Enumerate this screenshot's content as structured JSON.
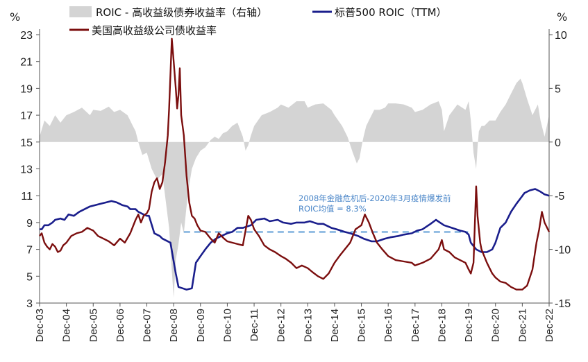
{
  "chart_data": {
    "type": "area",
    "left_axis": {
      "unit": "%",
      "ticks": [
        "3",
        "5",
        "7",
        "9",
        "11",
        "13",
        "15",
        "17",
        "19",
        "21",
        "23"
      ],
      "range": [
        3,
        23
      ]
    },
    "right_axis": {
      "unit": "%",
      "ticks": [
        "-15",
        "-10",
        "-5",
        "0",
        "5",
        "10"
      ],
      "range": [
        -15,
        10
      ]
    },
    "x_ticks": [
      "Dec-03",
      "Dec-04",
      "Dec-05",
      "Dec-06",
      "Dec-07",
      "Dec-08",
      "Dec-09",
      "Dec-10",
      "Dec-11",
      "Dec-12",
      "Dec-13",
      "Dec-14",
      "Dec-15",
      "Dec-16",
      "Dec-17",
      "Dec-18",
      "Dec-19",
      "Dec-20",
      "Dec-21",
      "Dec-22"
    ],
    "legend": [
      {
        "name": "ROIC - 高收益级债券收益率（右轴）",
        "color": "#d4d4d4",
        "kind": "area"
      },
      {
        "name": "标普500 ROIC（TTM）",
        "color": "#1a1e8c",
        "kind": "line"
      },
      {
        "name": "美国高收益级公司债收益率",
        "color": "#7b0e0e",
        "kind": "line"
      }
    ],
    "annotation": {
      "line1": "2008年金融危机后-2020年3月疫情爆发前",
      "line2": "ROIC均值 = 8.3%",
      "value": 8.3,
      "x_start": 2009.3,
      "x_end": 2019.9
    },
    "series": [
      {
        "name": "ROIC - 高收益级债券收益率（右轴）",
        "axis": "right",
        "x": [
          2003.92,
          2004.1,
          2004.3,
          2004.5,
          2004.7,
          2004.92,
          2005.2,
          2005.5,
          2005.8,
          2005.92,
          2006.2,
          2006.5,
          2006.7,
          2006.92,
          2007.2,
          2007.4,
          2007.5,
          2007.6,
          2007.75,
          2007.92,
          2008.1,
          2008.3,
          2008.5,
          2008.6,
          2008.75,
          2008.85,
          2008.92,
          2009.0,
          2009.1,
          2009.2,
          2009.3,
          2009.4,
          2009.5,
          2009.6,
          2009.75,
          2009.92,
          2010.1,
          2010.3,
          2010.45,
          2010.6,
          2010.75,
          2010.92,
          2011.1,
          2011.3,
          2011.5,
          2011.6,
          2011.7,
          2011.8,
          2011.92,
          2012.2,
          2012.5,
          2012.8,
          2012.92,
          2013.2,
          2013.5,
          2013.8,
          2013.92,
          2014.2,
          2014.5,
          2014.8,
          2014.92,
          2015.2,
          2015.4,
          2015.6,
          2015.75,
          2015.85,
          2015.92,
          2016.0,
          2016.1,
          2016.2,
          2016.4,
          2016.6,
          2016.8,
          2016.92,
          2017.2,
          2017.5,
          2017.8,
          2017.92,
          2018.2,
          2018.5,
          2018.8,
          2018.92,
          2019.0,
          2019.2,
          2019.5,
          2019.8,
          2019.92,
          2020.0,
          2020.1,
          2020.2,
          2020.25,
          2020.3,
          2020.4,
          2020.5,
          2020.7,
          2020.92,
          2021.1,
          2021.3,
          2021.5,
          2021.7,
          2021.85,
          2021.92,
          2022.1,
          2022.3,
          2022.5,
          2022.6,
          2022.75,
          2022.92
        ],
        "values": [
          0.5,
          2.0,
          1.5,
          2.5,
          1.8,
          2.5,
          2.8,
          3.2,
          2.5,
          3.0,
          2.9,
          3.3,
          2.8,
          3.0,
          2.5,
          1.5,
          1.0,
          0.0,
          -1.2,
          -1.0,
          -2.5,
          -3.5,
          -3.0,
          -5.0,
          -8.0,
          -12.0,
          -14.5,
          -11.0,
          -9.5,
          -7.5,
          -8.5,
          -6.0,
          -4.0,
          -2.5,
          -1.5,
          -0.8,
          -0.5,
          0.2,
          0.5,
          0.3,
          0.8,
          1.0,
          1.5,
          1.8,
          0.5,
          -0.8,
          -0.3,
          0.6,
          1.5,
          2.5,
          2.8,
          3.2,
          3.5,
          3.2,
          3.8,
          3.8,
          3.2,
          3.5,
          3.6,
          3.0,
          2.5,
          1.5,
          0.5,
          -1.0,
          -2.0,
          -1.5,
          -0.5,
          0.5,
          1.5,
          2.0,
          3.0,
          3.0,
          3.2,
          3.6,
          3.6,
          3.5,
          3.2,
          2.8,
          3.0,
          3.5,
          3.8,
          3.0,
          1.0,
          2.5,
          3.5,
          3.0,
          3.8,
          2.0,
          -1.0,
          -2.5,
          -0.5,
          1.0,
          1.5,
          1.5,
          2.0,
          2.0,
          2.8,
          3.5,
          4.5,
          5.5,
          5.9,
          5.5,
          4.0,
          2.5,
          3.5,
          2.0,
          0.5,
          2.5
        ]
      },
      {
        "name": "标普500 ROIC（TTM）",
        "axis": "left",
        "x": [
          2003.92,
          2004.0,
          2004.1,
          2004.25,
          2004.4,
          2004.5,
          2004.7,
          2004.85,
          2005.0,
          2005.2,
          2005.4,
          2005.6,
          2005.8,
          2006.0,
          2006.2,
          2006.4,
          2006.6,
          2006.8,
          2007.0,
          2007.2,
          2007.3,
          2007.5,
          2007.6,
          2007.8,
          2007.92,
          2008.0,
          2008.2,
          2008.4,
          2008.5,
          2008.8,
          2009.0,
          2009.1,
          2009.25,
          2009.4,
          2009.6,
          2009.75,
          2009.92,
          2010.1,
          2010.3,
          2010.5,
          2010.7,
          2010.92,
          2011.1,
          2011.3,
          2011.5,
          2011.8,
          2012.0,
          2012.3,
          2012.5,
          2012.8,
          2013.0,
          2013.3,
          2013.5,
          2013.8,
          2014.0,
          2014.3,
          2014.5,
          2014.8,
          2015.0,
          2015.3,
          2015.5,
          2015.8,
          2016.0,
          2016.3,
          2016.5,
          2016.8,
          2017.0,
          2017.3,
          2017.5,
          2017.8,
          2018.0,
          2018.2,
          2018.5,
          2018.7,
          2019.0,
          2019.3,
          2019.6,
          2019.8,
          2019.92,
          2020.0,
          2020.2,
          2020.4,
          2020.6,
          2020.8,
          2020.92,
          2021.1,
          2021.3,
          2021.5,
          2021.7,
          2021.85,
          2022.0,
          2022.2,
          2022.4,
          2022.6,
          2022.75,
          2022.92
        ],
        "values": [
          8.5,
          8.5,
          8.8,
          8.8,
          9.0,
          9.2,
          9.3,
          9.2,
          9.6,
          9.5,
          9.8,
          10.0,
          10.2,
          10.3,
          10.4,
          10.5,
          10.6,
          10.5,
          10.3,
          10.2,
          10.0,
          10.0,
          9.8,
          9.6,
          9.5,
          9.5,
          8.2,
          8.0,
          7.8,
          7.5,
          5.2,
          4.2,
          4.1,
          4.0,
          4.1,
          6.0,
          6.5,
          7.0,
          7.5,
          7.8,
          8.0,
          8.2,
          8.3,
          8.6,
          8.6,
          8.8,
          9.2,
          9.3,
          9.1,
          9.2,
          9.0,
          8.9,
          9.0,
          9.0,
          9.1,
          8.9,
          8.9,
          8.6,
          8.5,
          8.3,
          8.2,
          8.0,
          7.8,
          7.6,
          7.6,
          7.8,
          7.9,
          8.0,
          8.1,
          8.2,
          8.4,
          8.5,
          8.9,
          9.2,
          8.8,
          8.6,
          8.4,
          8.3,
          8.1,
          7.5,
          7.0,
          6.8,
          6.8,
          7.0,
          7.5,
          8.6,
          9.0,
          9.8,
          10.4,
          10.8,
          11.2,
          11.4,
          11.5,
          11.3,
          11.1,
          11.0
        ]
      },
      {
        "name": "美国高收益级公司债收益率",
        "axis": "left",
        "x": [
          2003.92,
          2004.0,
          2004.1,
          2004.2,
          2004.3,
          2004.4,
          2004.5,
          2004.6,
          2004.7,
          2004.8,
          2004.92,
          2005.1,
          2005.3,
          2005.5,
          2005.7,
          2005.92,
          2006.1,
          2006.3,
          2006.5,
          2006.7,
          2006.92,
          2007.1,
          2007.3,
          2007.5,
          2007.6,
          2007.7,
          2007.8,
          2007.92,
          2008.0,
          2008.1,
          2008.2,
          2008.3,
          2008.4,
          2008.5,
          2008.6,
          2008.7,
          2008.75,
          2008.8,
          2008.85,
          2008.92,
          2009.0,
          2009.05,
          2009.1,
          2009.15,
          2009.2,
          2009.3,
          2009.4,
          2009.5,
          2009.6,
          2009.7,
          2009.8,
          2009.92,
          2010.1,
          2010.3,
          2010.45,
          2010.6,
          2010.8,
          2010.92,
          2011.1,
          2011.3,
          2011.5,
          2011.7,
          2011.8,
          2011.92,
          2012.1,
          2012.3,
          2012.5,
          2012.7,
          2012.92,
          2013.1,
          2013.3,
          2013.5,
          2013.7,
          2013.92,
          2014.1,
          2014.3,
          2014.5,
          2014.7,
          2014.92,
          2015.1,
          2015.3,
          2015.5,
          2015.7,
          2015.92,
          2016.05,
          2016.2,
          2016.35,
          2016.5,
          2016.7,
          2016.92,
          2017.2,
          2017.5,
          2017.8,
          2017.92,
          2018.2,
          2018.5,
          2018.8,
          2018.92,
          2019.0,
          2019.2,
          2019.4,
          2019.6,
          2019.8,
          2019.92,
          2020.0,
          2020.1,
          2020.2,
          2020.25,
          2020.3,
          2020.35,
          2020.4,
          2020.5,
          2020.6,
          2020.7,
          2020.8,
          2020.92,
          2021.1,
          2021.3,
          2021.5,
          2021.7,
          2021.92,
          2022.1,
          2022.3,
          2022.45,
          2022.55,
          2022.65,
          2022.75,
          2022.92
        ],
        "values": [
          8.0,
          8.2,
          7.5,
          7.2,
          7.0,
          7.4,
          7.2,
          6.8,
          6.9,
          7.3,
          7.5,
          8.0,
          8.2,
          8.3,
          8.6,
          8.4,
          8.0,
          7.8,
          7.6,
          7.3,
          7.8,
          7.5,
          8.2,
          9.2,
          9.6,
          9.0,
          9.5,
          9.7,
          10.0,
          11.3,
          12.0,
          12.3,
          11.5,
          12.0,
          13.5,
          15.5,
          17.5,
          20.0,
          22.7,
          21.0,
          19.0,
          17.5,
          18.5,
          20.5,
          17.0,
          15.5,
          12.5,
          10.5,
          9.5,
          9.3,
          8.8,
          8.4,
          8.3,
          7.8,
          7.5,
          8.2,
          7.8,
          7.6,
          7.5,
          7.4,
          7.3,
          9.5,
          9.2,
          8.5,
          8.0,
          7.3,
          7.0,
          6.8,
          6.5,
          6.3,
          6.0,
          5.6,
          5.8,
          5.6,
          5.3,
          5.0,
          4.8,
          5.2,
          6.0,
          6.5,
          7.0,
          7.5,
          8.5,
          8.8,
          9.6,
          9.0,
          8.2,
          7.5,
          7.0,
          6.5,
          6.2,
          6.1,
          6.0,
          5.8,
          6.0,
          6.3,
          7.0,
          7.7,
          7.0,
          6.8,
          6.4,
          6.2,
          6.0,
          5.5,
          5.2,
          6.0,
          11.7,
          9.5,
          8.5,
          7.5,
          7.0,
          6.5,
          6.0,
          5.6,
          5.2,
          4.9,
          4.6,
          4.5,
          4.2,
          4.0,
          4.0,
          4.3,
          5.5,
          7.5,
          8.5,
          9.8,
          9.0,
          8.3
        ]
      }
    ]
  }
}
